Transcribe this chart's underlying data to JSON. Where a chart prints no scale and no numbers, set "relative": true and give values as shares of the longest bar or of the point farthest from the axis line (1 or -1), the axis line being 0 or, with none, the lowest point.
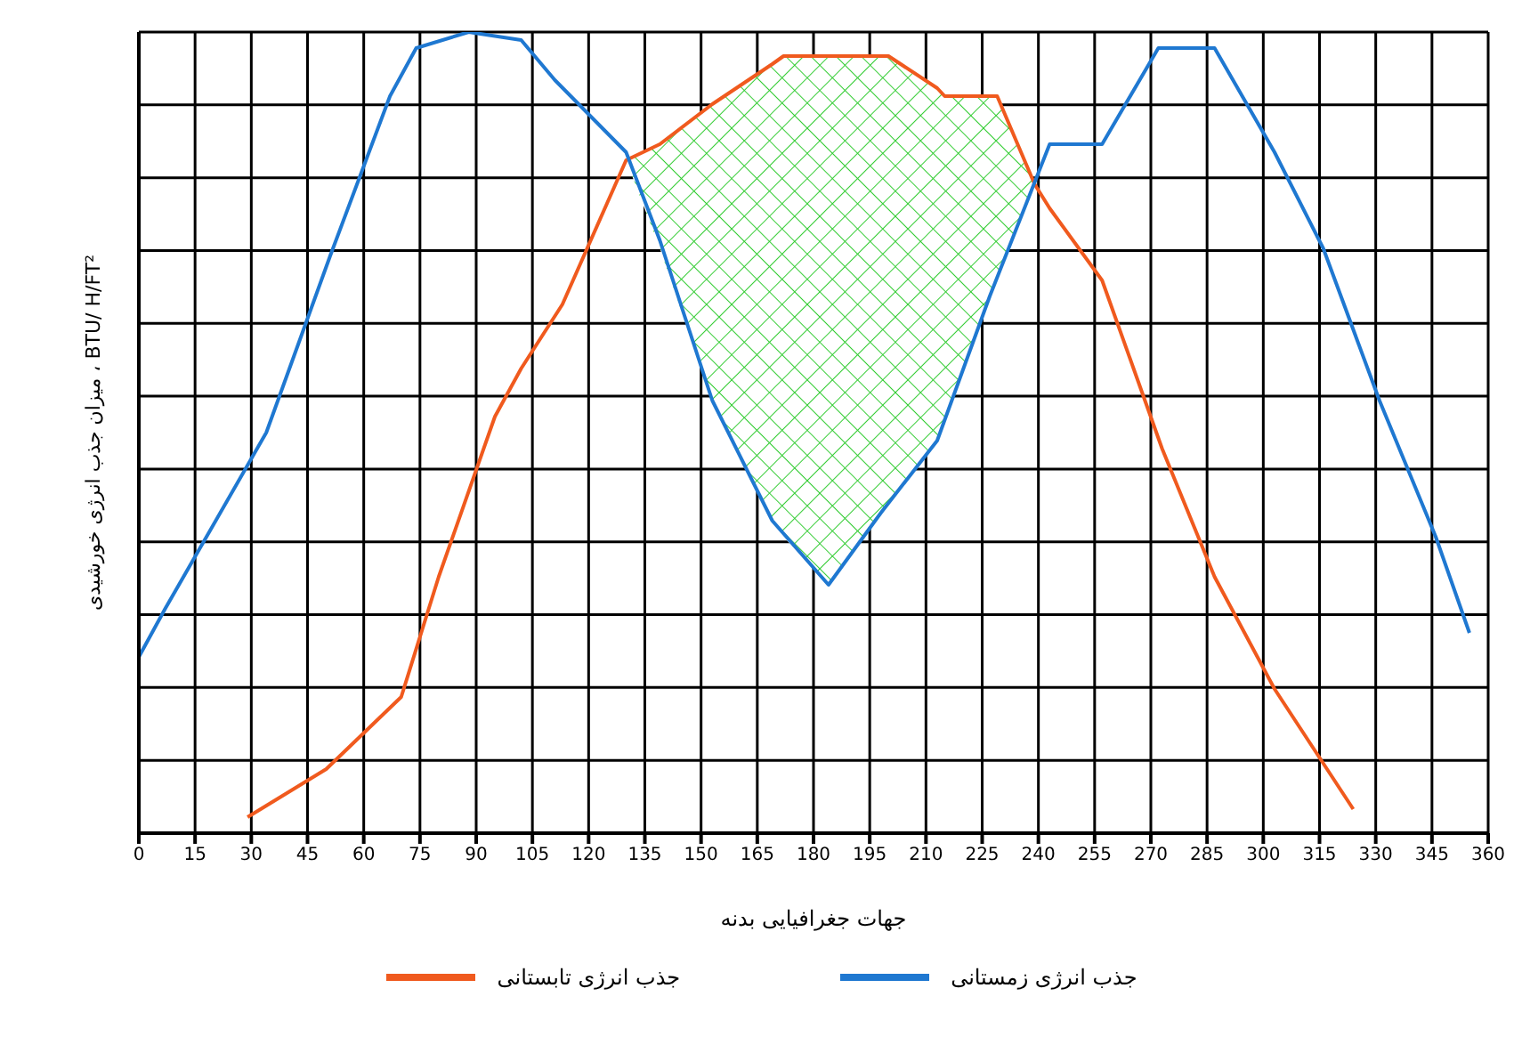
{
  "chart_data": {
    "type": "line",
    "relative": true,
    "xlabel": "جهات جغرافیایی بدنه",
    "ylabel": "میزان جذب انرژی خورشیدی ، BTU/ H/FT²",
    "xlim": [
      0,
      360
    ],
    "xticks": [
      0,
      15,
      30,
      45,
      60,
      75,
      90,
      105,
      120,
      135,
      150,
      165,
      180,
      195,
      210,
      225,
      240,
      255,
      270,
      285,
      300,
      315,
      330,
      345,
      360
    ],
    "grid": true,
    "legend": "bottom",
    "series": [
      {
        "name": "جذب انرژی تابستانی",
        "color": "#f05a1e",
        "x": [
          29,
          50,
          70,
          80,
          95,
          102,
          113,
          130,
          139,
          153,
          169,
          172,
          184,
          198,
          200,
          213,
          215,
          227,
          229,
          239,
          243,
          257,
          273,
          287,
          303,
          324
        ],
        "values": [
          0.02,
          0.08,
          0.17,
          0.32,
          0.52,
          0.58,
          0.66,
          0.84,
          0.86,
          0.91,
          0.96,
          0.97,
          0.97,
          0.97,
          0.97,
          0.93,
          0.92,
          0.92,
          0.92,
          0.81,
          0.78,
          0.69,
          0.48,
          0.32,
          0.18,
          0.03
        ],
        "lower": [
          null,
          null,
          null,
          null,
          null,
          null,
          null,
          0.84,
          0.73,
          0.54,
          0.39,
          0.37,
          0.31,
          0.4,
          0.41,
          0.49,
          0.52,
          0.67,
          0.69,
          0.81,
          null,
          null,
          null,
          null,
          null,
          null
        ],
        "upper": [
          null,
          null,
          null,
          null,
          null,
          null,
          null,
          0.84,
          0.86,
          0.91,
          0.96,
          0.97,
          0.97,
          0.97,
          0.97,
          0.93,
          0.92,
          0.92,
          0.92,
          0.81,
          null,
          null,
          null,
          null,
          null,
          null
        ]
      },
      {
        "name": "جذب انرژی زمستانی",
        "color": "#1f78d1",
        "x": [
          0,
          7,
          34,
          51,
          67,
          74,
          88,
          102,
          111,
          130,
          139,
          153,
          169,
          184,
          198,
          213,
          227,
          243,
          257,
          272,
          287,
          303,
          316,
          331,
          346,
          355
        ],
        "values": [
          0.22,
          0.28,
          0.5,
          0.72,
          0.92,
          0.98,
          1,
          0.99,
          0.94,
          0.85,
          0.74,
          0.54,
          0.39,
          0.31,
          0.4,
          0.49,
          0.67,
          0.86,
          0.86,
          0.98,
          0.98,
          0.85,
          0.73,
          0.54,
          0.37,
          0.25
        ]
      }
    ]
  }
}
